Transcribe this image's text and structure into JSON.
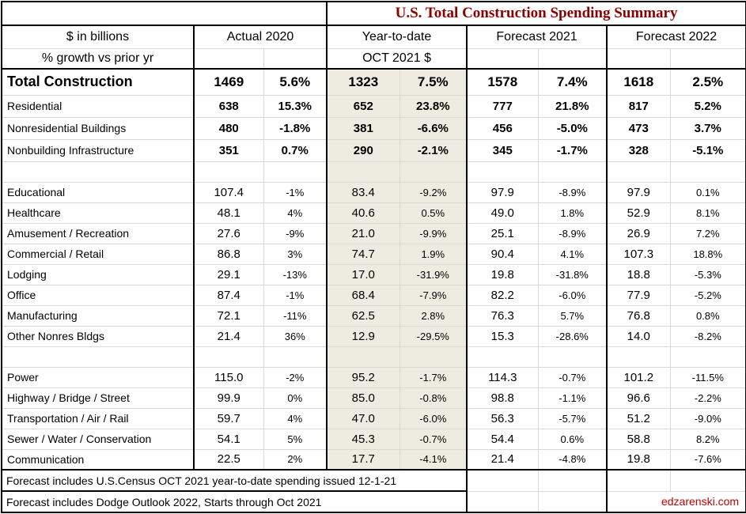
{
  "page_title": "U.S. Total Construction Spending Summary",
  "colors": {
    "title_color": "#8B0000",
    "highlight_color": "#EEECE1",
    "link_color": "#C00000"
  },
  "header": {
    "corner_line1": "$ in billions",
    "corner_line2": "% growth vs prior yr",
    "groups": [
      {
        "label": "Actual 2020",
        "subheader": ""
      },
      {
        "label": "Year-to-date",
        "subheader": "OCT 2021 $"
      },
      {
        "label": "Forecast 2021",
        "subheader": ""
      },
      {
        "label": "Forecast 2022",
        "subheader": ""
      }
    ]
  },
  "table": {
    "rows": [
      {
        "label": "Total Construction",
        "style": "total",
        "values": [
          "1469",
          "5.6%",
          "1323",
          "7.5%",
          "1578",
          "7.4%",
          "1618",
          "2.5%"
        ]
      },
      {
        "label": "Residential",
        "style": "major",
        "values": [
          "638",
          "15.3%",
          "652",
          "23.8%",
          "777",
          "21.8%",
          "817",
          "5.2%"
        ]
      },
      {
        "label": "Nonresidential Buildings",
        "style": "major",
        "values": [
          "480",
          "-1.8%",
          "381",
          "-6.6%",
          "456",
          "-5.0%",
          "473",
          "3.7%"
        ]
      },
      {
        "label": "Nonbuilding Infrastructure",
        "style": "major",
        "values": [
          "351",
          "0.7%",
          "290",
          "-2.1%",
          "345",
          "-1.7%",
          "328",
          "-5.1%"
        ]
      },
      {
        "label": "",
        "style": "blank",
        "values": [
          "",
          "",
          "",
          "",
          "",
          "",
          "",
          ""
        ]
      },
      {
        "label": "Educational",
        "style": "sub",
        "values": [
          "107.4",
          "-1%",
          "83.4",
          "-9.2%",
          "97.9",
          "-8.9%",
          "97.9",
          "0.1%"
        ]
      },
      {
        "label": "Healthcare",
        "style": "sub",
        "values": [
          "48.1",
          "4%",
          "40.6",
          "0.5%",
          "49.0",
          "1.8%",
          "52.9",
          "8.1%"
        ]
      },
      {
        "label": "Amusement / Recreation",
        "style": "sub",
        "values": [
          "27.6",
          "-9%",
          "21.0",
          "-9.9%",
          "25.1",
          "-8.9%",
          "26.9",
          "7.2%"
        ]
      },
      {
        "label": "Commercial / Retail",
        "style": "sub",
        "values": [
          "86.8",
          "3%",
          "74.7",
          "1.9%",
          "90.4",
          "4.1%",
          "107.3",
          "18.8%"
        ]
      },
      {
        "label": "Lodging",
        "style": "sub",
        "values": [
          "29.1",
          "-13%",
          "17.0",
          "-31.9%",
          "19.8",
          "-31.8%",
          "18.8",
          "-5.3%"
        ]
      },
      {
        "label": "Office",
        "style": "sub",
        "values": [
          "87.4",
          "-1%",
          "68.4",
          "-7.9%",
          "82.2",
          "-6.0%",
          "77.9",
          "-5.2%"
        ]
      },
      {
        "label": "Manufacturing",
        "style": "sub",
        "values": [
          "72.1",
          "-11%",
          "62.5",
          "2.8%",
          "76.3",
          "5.7%",
          "76.8",
          "0.8%"
        ]
      },
      {
        "label": "Other Nonres Bldgs",
        "style": "sub",
        "values": [
          "21.4",
          "36%",
          "12.9",
          "-29.5%",
          "15.3",
          "-28.6%",
          "14.0",
          "-8.2%"
        ]
      },
      {
        "label": "",
        "style": "blank",
        "values": [
          "",
          "",
          "",
          "",
          "",
          "",
          "",
          ""
        ]
      },
      {
        "label": "Power",
        "style": "sub",
        "values": [
          "115.0",
          "-2%",
          "95.2",
          "-1.7%",
          "114.3",
          "-0.7%",
          "101.2",
          "-11.5%"
        ]
      },
      {
        "label": "Highway / Bridge / Street",
        "style": "sub",
        "values": [
          "99.9",
          "0%",
          "85.0",
          "-0.8%",
          "98.8",
          "-1.1%",
          "96.6",
          "-2.2%"
        ]
      },
      {
        "label": "Transportation / Air / Rail",
        "style": "sub",
        "values": [
          "59.7",
          "4%",
          "47.0",
          "-6.0%",
          "56.3",
          "-5.7%",
          "51.2",
          "-9.0%"
        ]
      },
      {
        "label": "Sewer / Water / Conservation",
        "style": "sub",
        "values": [
          "54.1",
          "5%",
          "45.3",
          "-0.7%",
          "54.4",
          "0.6%",
          "58.8",
          "8.2%"
        ]
      },
      {
        "label": "Communication",
        "style": "sub",
        "values": [
          "22.5",
          "2%",
          "17.7",
          "-4.1%",
          "21.4",
          "-4.8%",
          "19.8",
          "-7.6%"
        ]
      }
    ]
  },
  "footer": {
    "note1": "Forecast includes U.S.Census OCT 2021 year-to-date spending issued 12-1-21",
    "note2": "Forecast includes Dodge Outlook 2022, Starts through Oct 2021",
    "site": "edzarenski.com"
  }
}
